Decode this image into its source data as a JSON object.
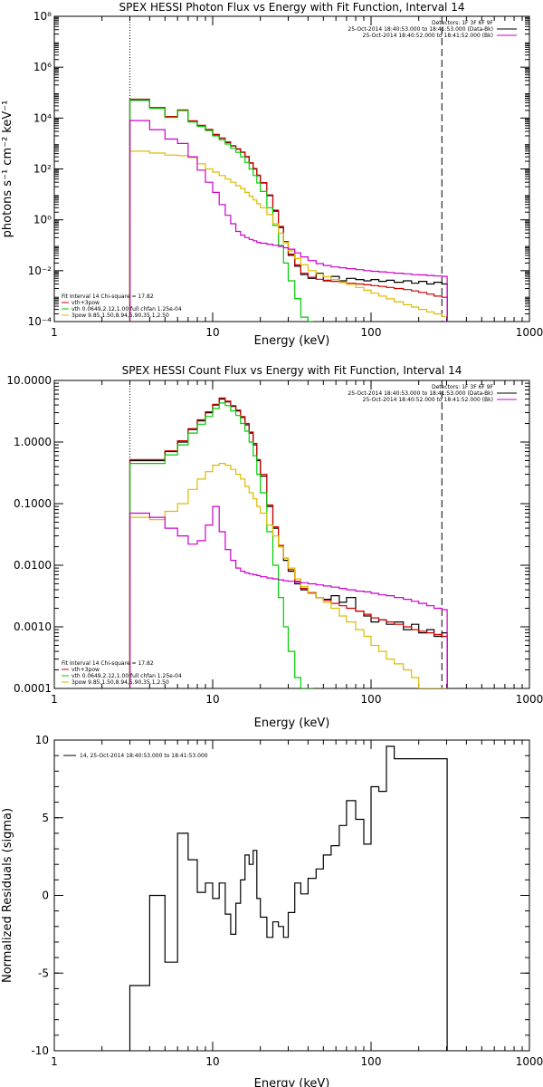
{
  "chart_data": [
    {
      "type": "line",
      "title": "SPEX HESSI Photon Flux vs Energy with Fit Function, Interval 14",
      "xlabel": "Energy (keV)",
      "ylabel": "photons s⁻¹ cm⁻² keV⁻¹",
      "xscale": "log",
      "yscale": "log",
      "xlim": [
        1,
        1000
      ],
      "ylim": [
        0.0001,
        100000000
      ],
      "xticks": [
        "1",
        "10",
        "100",
        "1000"
      ],
      "yticks": [
        "10⁻⁴",
        "10⁻²",
        "10⁰",
        "10²",
        "10⁴",
        "10⁶",
        "10⁸"
      ],
      "vlines": [
        {
          "x": 3,
          "style": "dotted"
        },
        {
          "x": 280,
          "style": "dashed"
        }
      ],
      "legend_top": [
        "Detectors: 1F 3F 6F 9F",
        "25-Oct-2014 18:40:53.000 to 18:41:53.000 (Data-Bk)",
        "25-Oct-2014 18:40:52.000 to 18:41:52.000 (Bk)"
      ],
      "legend_top_colors": [
        "",
        "#000000",
        "#cc00cc"
      ],
      "legend_bottom": [
        "Fit Interval 14   Chi-square = 17.82",
        "vth+3pow",
        "vth 0.0649,2.12,1.00  full chfan 1.25e-04",
        "3pow 9.85,1.50,8.94,5.90,35.1,2.50"
      ],
      "legend_bottom_colors": [
        "",
        "#cc0000",
        "#00cc00",
        "#ddbb00"
      ],
      "series": [
        {
          "name": "Data-Bk",
          "color": "#000000",
          "x": [
            3,
            4,
            5,
            6,
            7,
            8,
            9,
            10,
            11,
            12,
            13,
            14,
            15,
            16,
            17,
            18,
            19,
            20,
            22,
            24,
            26,
            28,
            30,
            33,
            36,
            40,
            45,
            50,
            56,
            63,
            70,
            80,
            90,
            100,
            112,
            125,
            140,
            160,
            180,
            200,
            225,
            250,
            280
          ],
          "y": [
            50000,
            25000,
            11000,
            20000,
            7500,
            5000,
            3500,
            2200,
            1600,
            1100,
            800,
            600,
            450,
            300,
            170,
            100,
            55,
            28,
            9,
            2.2,
            0.5,
            0.13,
            0.04,
            0.015,
            0.007,
            0.005,
            0.008,
            0.004,
            0.006,
            0.004,
            0.005,
            0.0045,
            0.004,
            0.0045,
            0.0038,
            0.0042,
            0.0035,
            0.004,
            0.0032,
            0.0038,
            0.003,
            0.0035,
            0.003
          ]
        },
        {
          "name": "vth+3pow",
          "color": "#cc0000",
          "x": [
            3,
            4,
            5,
            6,
            7,
            8,
            9,
            10,
            11,
            12,
            13,
            14,
            15,
            16,
            17,
            18,
            19,
            20,
            22,
            24,
            26,
            28,
            30,
            33,
            36,
            40,
            45,
            50,
            56,
            63,
            70,
            80,
            90,
            100,
            112,
            125,
            140,
            160,
            180,
            200,
            225,
            250,
            280
          ],
          "y": [
            55000,
            26000,
            11500,
            21000,
            7800,
            5200,
            3600,
            2300,
            1650,
            1150,
            820,
            620,
            460,
            310,
            175,
            104,
            57,
            29,
            9.5,
            2.4,
            0.55,
            0.14,
            0.045,
            0.017,
            0.008,
            0.0055,
            0.0046,
            0.0042,
            0.0038,
            0.0035,
            0.0032,
            0.003,
            0.0028,
            0.0026,
            0.0024,
            0.0022,
            0.002,
            0.0018,
            0.0016,
            0.0014,
            0.0012,
            0.001,
            0.0009
          ]
        },
        {
          "name": "vth",
          "color": "#00cc00",
          "x": [
            3,
            4,
            5,
            6,
            7,
            8,
            9,
            10,
            11,
            12,
            13,
            14,
            15,
            16,
            17,
            18,
            19,
            20,
            22,
            24,
            26,
            28,
            30,
            33,
            36,
            40
          ],
          "y": [
            52000,
            24000,
            10500,
            19500,
            7000,
            4700,
            3200,
            2000,
            1400,
            950,
            650,
            450,
            300,
            180,
            100,
            55,
            28,
            13,
            3,
            0.6,
            0.1,
            0.02,
            0.004,
            0.0008,
            0.00015,
            0.0001
          ]
        },
        {
          "name": "3pow",
          "color": "#ddbb00",
          "x": [
            3,
            4,
            5,
            6,
            7,
            8,
            9,
            10,
            11,
            12,
            13,
            14,
            15,
            16,
            17,
            18,
            19,
            20,
            22,
            24,
            26,
            28,
            30,
            33,
            36,
            40,
            45,
            50,
            56,
            63,
            70,
            80,
            90,
            100,
            112,
            125,
            140,
            160,
            180,
            200,
            225,
            250,
            280
          ],
          "y": [
            500,
            420,
            350,
            330,
            280,
            160,
            100,
            75,
            55,
            40,
            30,
            22,
            17,
            12,
            8.5,
            6,
            4.3,
            3,
            1.6,
            0.7,
            0.3,
            0.13,
            0.06,
            0.03,
            0.017,
            0.01,
            0.0075,
            0.0058,
            0.0045,
            0.0036,
            0.0029,
            0.0022,
            0.0017,
            0.0013,
            0.001,
            0.00078,
            0.0006,
            0.00046,
            0.00037,
            0.0003,
            0.00024,
            0.0002,
            0.00016
          ]
        },
        {
          "name": "Bk",
          "color": "#cc00cc",
          "x": [
            3,
            4,
            5,
            6,
            7,
            8,
            9,
            10,
            11,
            12,
            13,
            14,
            15,
            16,
            17,
            18,
            19,
            20,
            22,
            24,
            26,
            28,
            30,
            33,
            36,
            40,
            45,
            50,
            56,
            63,
            70,
            80,
            90,
            100,
            112,
            125,
            140,
            160,
            180,
            200,
            225,
            250,
            280
          ],
          "y": [
            8000,
            3500,
            1500,
            1000,
            300,
            90,
            30,
            12,
            4,
            1.5,
            0.7,
            0.35,
            0.25,
            0.2,
            0.17,
            0.15,
            0.13,
            0.12,
            0.11,
            0.1,
            0.09,
            0.08,
            0.07,
            0.05,
            0.035,
            0.025,
            0.019,
            0.016,
            0.014,
            0.013,
            0.012,
            0.011,
            0.01,
            0.0095,
            0.009,
            0.0085,
            0.008,
            0.0075,
            0.007,
            0.0068,
            0.0065,
            0.0062,
            0.006
          ]
        }
      ]
    },
    {
      "type": "line",
      "title": "SPEX HESSI Count Flux vs Energy with Fit Function, Interval 14",
      "xlabel": "Energy (keV)",
      "ylabel": "",
      "xscale": "log",
      "yscale": "log",
      "xlim": [
        1,
        1000
      ],
      "ylim": [
        0.0001,
        10
      ],
      "xticks": [
        "1",
        "10",
        "100",
        "1000"
      ],
      "yticks": [
        "0.0001",
        "0.0010",
        "0.0100",
        "0.1000",
        "1.0000",
        "10.0000"
      ],
      "vlines": [
        {
          "x": 3,
          "style": "dotted"
        },
        {
          "x": 280,
          "style": "dashed"
        }
      ],
      "legend_top": [
        "Detectors: 1F 3F 6F 9F",
        "25-Oct-2014 18:40:53.000 to 18:41:53.000 (Data-Bk)",
        "25-Oct-2014 18:40:52.000 to 18:41:52.000 (Bk)"
      ],
      "legend_top_colors": [
        "",
        "#000000",
        "#cc00cc"
      ],
      "legend_bottom": [
        "Fit Interval 14   Chi-square = 17.82",
        "vth+3pow",
        "vth 0.0649,2.12,1.00  full chfan 1.25e-04",
        "3pow 9.85,1.50,8.94,5.90,35.1,2.50"
      ],
      "legend_bottom_colors": [
        "",
        "#cc0000",
        "#00cc00",
        "#ddbb00"
      ],
      "series": [
        {
          "name": "Data-Bk",
          "color": "#000000",
          "x": [
            3,
            4,
            5,
            6,
            7,
            8,
            9,
            10,
            11,
            12,
            13,
            14,
            15,
            16,
            17,
            18,
            19,
            20,
            22,
            24,
            26,
            28,
            30,
            33,
            36,
            40,
            45,
            50,
            56,
            63,
            70,
            80,
            90,
            100,
            112,
            125,
            140,
            160,
            180,
            200,
            225,
            250,
            280
          ],
          "y": [
            0.5,
            0.5,
            0.7,
            1.0,
            1.6,
            2.2,
            3.0,
            4.0,
            5.0,
            4.5,
            3.8,
            3.2,
            2.5,
            1.9,
            1.4,
            0.9,
            0.5,
            0.28,
            0.09,
            0.04,
            0.02,
            0.012,
            0.008,
            0.005,
            0.004,
            0.0035,
            0.003,
            0.0028,
            0.0032,
            0.0025,
            0.003,
            0.0018,
            0.0015,
            0.0012,
            0.0013,
            0.0011,
            0.0012,
            0.0009,
            0.0011,
            0.0008,
            0.0009,
            0.0007,
            0.0008
          ]
        },
        {
          "name": "vth+3pow",
          "color": "#cc0000",
          "x": [
            3,
            4,
            5,
            6,
            7,
            8,
            9,
            10,
            11,
            12,
            13,
            14,
            15,
            16,
            17,
            18,
            19,
            20,
            22,
            24,
            26,
            28,
            30,
            33,
            36,
            40,
            45,
            50,
            56,
            63,
            70,
            80,
            90,
            100,
            112,
            125,
            140,
            160,
            180,
            200,
            225,
            250,
            280
          ],
          "y": [
            0.52,
            0.52,
            0.72,
            1.05,
            1.65,
            2.3,
            3.1,
            4.1,
            5.2,
            4.6,
            3.9,
            3.3,
            2.6,
            2.0,
            1.45,
            0.95,
            0.52,
            0.3,
            0.095,
            0.042,
            0.021,
            0.013,
            0.0085,
            0.0055,
            0.0042,
            0.0036,
            0.003,
            0.0027,
            0.0024,
            0.0022,
            0.002,
            0.0018,
            0.0016,
            0.0014,
            0.0013,
            0.0012,
            0.0011,
            0.001,
            0.0009,
            0.00085,
            0.0008,
            0.00075,
            0.0007
          ]
        },
        {
          "name": "vth",
          "color": "#00cc00",
          "x": [
            3,
            4,
            5,
            6,
            7,
            8,
            9,
            10,
            11,
            12,
            13,
            14,
            15,
            16,
            17,
            18,
            19,
            20,
            22,
            24,
            26,
            28,
            30,
            33,
            36,
            40
          ],
          "y": [
            0.45,
            0.45,
            0.62,
            0.9,
            1.4,
            1.95,
            2.6,
            3.5,
            4.3,
            3.9,
            3.2,
            2.7,
            2.0,
            1.5,
            1.0,
            0.6,
            0.3,
            0.15,
            0.035,
            0.01,
            0.003,
            0.001,
            0.0004,
            0.00015,
            0.0001,
            0.0001
          ]
        },
        {
          "name": "3pow",
          "color": "#ddbb00",
          "x": [
            3,
            4,
            5,
            6,
            7,
            8,
            9,
            10,
            11,
            12,
            13,
            14,
            15,
            16,
            17,
            18,
            19,
            20,
            22,
            24,
            26,
            28,
            30,
            33,
            36,
            40,
            45,
            50,
            56,
            63,
            70,
            80,
            90,
            100,
            112,
            125,
            140,
            160,
            180,
            200,
            225,
            250,
            280
          ],
          "y": [
            0.06,
            0.055,
            0.075,
            0.1,
            0.17,
            0.25,
            0.33,
            0.42,
            0.45,
            0.42,
            0.36,
            0.3,
            0.25,
            0.19,
            0.15,
            0.12,
            0.09,
            0.07,
            0.045,
            0.03,
            0.02,
            0.013,
            0.009,
            0.006,
            0.0045,
            0.0035,
            0.003,
            0.0025,
            0.002,
            0.0015,
            0.0012,
            0.0009,
            0.0007,
            0.0005,
            0.0004,
            0.0003,
            0.00025,
            0.0002,
            0.00015,
            0.0001,
            0.0001,
            0.0001,
            0.0001
          ]
        },
        {
          "name": "Bk",
          "color": "#cc00cc",
          "x": [
            3,
            4,
            5,
            6,
            7,
            8,
            9,
            10,
            11,
            12,
            13,
            14,
            15,
            16,
            17,
            18,
            19,
            20,
            22,
            24,
            26,
            28,
            30,
            33,
            36,
            40,
            45,
            50,
            56,
            63,
            70,
            80,
            90,
            100,
            112,
            125,
            140,
            160,
            180,
            200,
            225,
            250,
            280
          ],
          "y": [
            0.07,
            0.06,
            0.04,
            0.03,
            0.022,
            0.025,
            0.045,
            0.09,
            0.035,
            0.018,
            0.012,
            0.009,
            0.008,
            0.0075,
            0.0072,
            0.007,
            0.0068,
            0.0065,
            0.0062,
            0.006,
            0.0058,
            0.0056,
            0.0055,
            0.0053,
            0.0052,
            0.005,
            0.0048,
            0.0046,
            0.0044,
            0.0042,
            0.004,
            0.0038,
            0.0037,
            0.0035,
            0.0033,
            0.0032,
            0.003,
            0.0028,
            0.0026,
            0.0024,
            0.0022,
            0.002,
            0.0019
          ]
        }
      ]
    },
    {
      "type": "line",
      "title": "",
      "xlabel": "Energy (keV)",
      "ylabel": "Normalized Residuals (sigma)",
      "xscale": "log",
      "yscale": "linear",
      "xlim": [
        1,
        1000
      ],
      "ylim": [
        -10,
        10
      ],
      "xticks": [
        "1",
        "10",
        "100",
        "1000"
      ],
      "yticks": [
        "-10",
        "-5",
        "0",
        "5",
        "10"
      ],
      "legend": "14, 25-Oct-2014 18:40:53.000 to 18:41:53.000",
      "series": [
        {
          "name": "14, 25-Oct-2014 18:40:53.000 to 18:41:53.000",
          "color": "#000000",
          "x": [
            3,
            4,
            5,
            6,
            7,
            8,
            9,
            10,
            11,
            12,
            13,
            14,
            15,
            16,
            17,
            18,
            19,
            20,
            22,
            24,
            26,
            28,
            30,
            33,
            36,
            40,
            45,
            50,
            56,
            63,
            70,
            80,
            90,
            100,
            112,
            125,
            140,
            160,
            180,
            200,
            225,
            250,
            280
          ],
          "y": [
            -5.8,
            0,
            -4.3,
            4,
            2.3,
            0.2,
            0.8,
            -0.2,
            0.8,
            -1.2,
            -2.5,
            -0.5,
            1,
            2.6,
            2,
            2.9,
            -0.2,
            -1.4,
            -2.7,
            -1.7,
            -2,
            -2.7,
            -1.1,
            0.8,
            0.1,
            1.1,
            1.7,
            2.6,
            3.2,
            4.5,
            6.1,
            4.9,
            3.3,
            7.0,
            6.7,
            9.6,
            8.8,
            8.8,
            8.8,
            8.8,
            8.8,
            8.8,
            8.8
          ]
        }
      ]
    }
  ]
}
